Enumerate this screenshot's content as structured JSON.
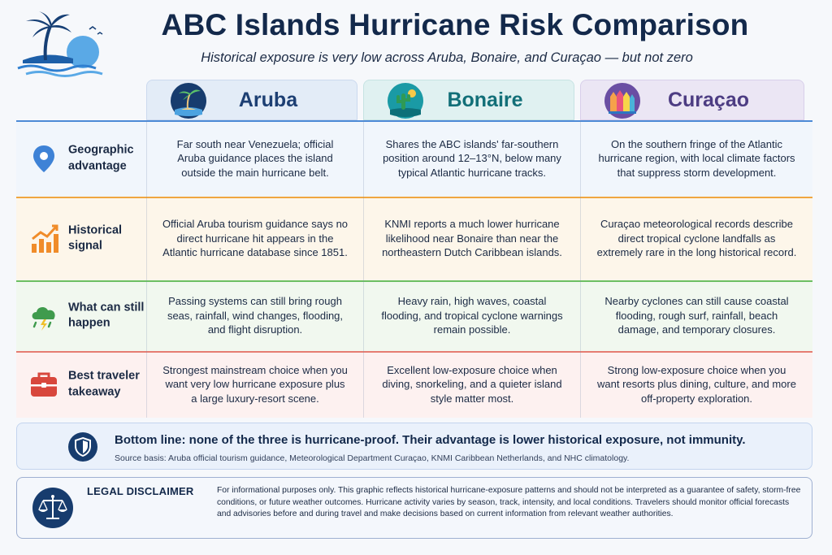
{
  "header": {
    "title": "ABC Islands Hurricane Risk Comparison",
    "subtitle": "Historical exposure is very low across Aruba, Bonaire, and Curaçao — but not zero"
  },
  "columns": [
    {
      "name": "Aruba",
      "icon": "palm-beach-icon",
      "accent": "#1d3f73"
    },
    {
      "name": "Bonaire",
      "icon": "cactus-sun-icon",
      "accent": "#126f78"
    },
    {
      "name": "Curaçao",
      "icon": "colorful-houses-icon",
      "accent": "#4d3d83"
    }
  ],
  "rows": [
    {
      "label": "Geographic advantage",
      "icon": "location-pin-icon",
      "accent": "#4d8ad6",
      "aruba": "Far south near Venezuela; official Aruba guidance places the island outside the main hurricane belt.",
      "bonaire": "Shares the ABC islands' far-southern position around 12–13°N, below many typical Atlantic hurricane tracks.",
      "curacao": "On the southern fringe of the Atlantic hurricane region, with local climate factors that suppress storm development."
    },
    {
      "label": "Historical signal",
      "icon": "rising-chart-icon",
      "accent": "#f0a640",
      "aruba": "Official Aruba tourism guidance says no direct hurricane hit appears in the Atlantic hurricane database since 1851.",
      "bonaire": "KNMI reports a much lower hurricane likelihood near Bonaire than near the northeastern Dutch Caribbean islands.",
      "curacao": "Curaçao meteorological records describe direct tropical cyclone landfalls as extremely rare in the long historical record."
    },
    {
      "label": "What can still happen",
      "icon": "storm-cloud-icon",
      "accent": "#6cbf63",
      "aruba": "Passing systems can still bring rough seas, rainfall, wind changes, flooding, and flight disruption.",
      "bonaire": "Heavy rain, high waves, coastal flooding, and tropical cyclone warnings remain possible.",
      "curacao": "Nearby cyclones can still cause coastal flooding, rough surf, rainfall, beach damage, and temporary closures."
    },
    {
      "label": "Best traveler takeaway",
      "icon": "suitcase-icon",
      "accent": "#e57d72",
      "aruba": "Strongest mainstream choice when you want very low hurricane exposure plus a large luxury-resort scene.",
      "bonaire": "Excellent low-exposure choice when diving, snorkeling, and a quieter island style matter most.",
      "curacao": "Strong low-exposure choice when you want resorts plus dining, culture, and more off-property exploration."
    }
  ],
  "bottom_line": {
    "text": "Bottom line: none of the three is hurricane-proof. Their advantage is lower historical exposure, not immunity.",
    "source": "Source basis: Aruba official tourism guidance, Meteorological Department Curaçao, KNMI Caribbean Netherlands, and NHC climatology.",
    "icon": "shield-icon"
  },
  "legal": {
    "title": "LEGAL DISCLAIMER",
    "text": "For informational purposes only. This graphic reflects historical hurricane-exposure patterns and should not be interpreted as a guarantee of safety, storm-free conditions, or future weather outcomes. Hurricane activity varies by season, track, intensity, and local conditions. Travelers should monitor official forecasts and advisories before and during travel and make decisions based on current information from relevant weather authorities.",
    "icon": "scales-icon"
  }
}
